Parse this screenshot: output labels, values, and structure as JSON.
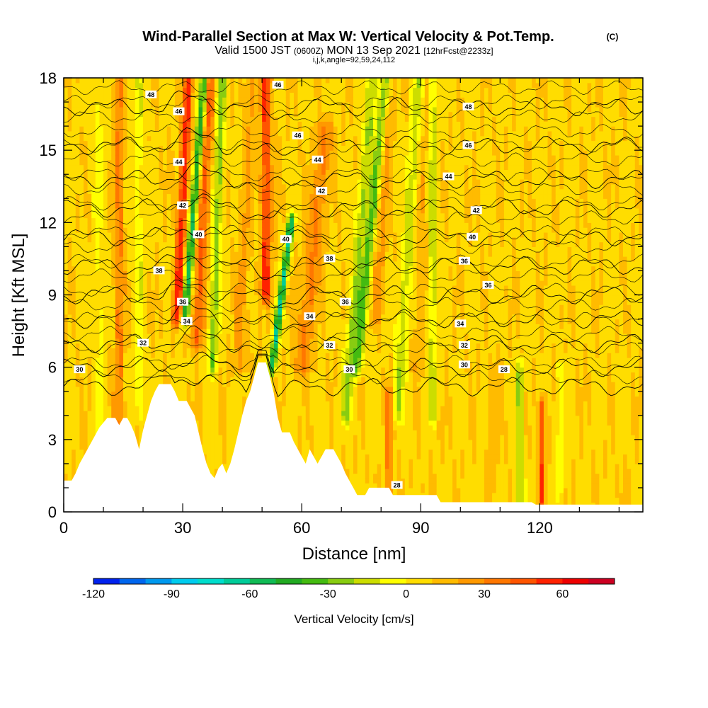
{
  "header": {
    "title_main": "Wind-Parallel Section at Max W: Vertical Velocity & Pot.Temp.",
    "copyright": "(C)",
    "valid_prefix": "Valid 1500 JST",
    "valid_utc": "(0600Z)",
    "valid_date": "MON 13 Sep 2021",
    "forecast": "[12hrFcst@2233z]",
    "indices": "i,j,k,angle=92,59,24,112"
  },
  "chart_data": {
    "type": "heatmap",
    "xlabel": "Distance [nm]",
    "ylabel": "Height [Kft MSL]",
    "xlim": [
      0,
      146
    ],
    "ylim": [
      0,
      18
    ],
    "x_ticks": [
      0,
      30,
      60,
      90,
      120
    ],
    "y_ticks": [
      0,
      3,
      6,
      9,
      12,
      15,
      18
    ],
    "terrain": [
      [
        0,
        1.3
      ],
      [
        2,
        1.3
      ],
      [
        3,
        1.6
      ],
      [
        4,
        2.0
      ],
      [
        5,
        2.3
      ],
      [
        6,
        2.6
      ],
      [
        7,
        2.9
      ],
      [
        8,
        3.2
      ],
      [
        9,
        3.5
      ],
      [
        10,
        3.7
      ],
      [
        11,
        3.9
      ],
      [
        13,
        3.9
      ],
      [
        14,
        3.6
      ],
      [
        15,
        3.9
      ],
      [
        16,
        3.9
      ],
      [
        17,
        3.6
      ],
      [
        18,
        3.2
      ],
      [
        19,
        2.6
      ],
      [
        20,
        3.4
      ],
      [
        21,
        4.0
      ],
      [
        22,
        4.6
      ],
      [
        23,
        5.0
      ],
      [
        24,
        5.3
      ],
      [
        27,
        5.3
      ],
      [
        28,
        5.0
      ],
      [
        29,
        4.6
      ],
      [
        31,
        4.6
      ],
      [
        32,
        4.3
      ],
      [
        33,
        4.0
      ],
      [
        34,
        3.3
      ],
      [
        35,
        2.6
      ],
      [
        36,
        2.0
      ],
      [
        37,
        1.6
      ],
      [
        38,
        1.4
      ],
      [
        39,
        1.8
      ],
      [
        40,
        2.0
      ],
      [
        41,
        1.6
      ],
      [
        42,
        2.0
      ],
      [
        43,
        2.6
      ],
      [
        44,
        3.3
      ],
      [
        45,
        4.0
      ],
      [
        46,
        4.6
      ],
      [
        47,
        5.0
      ],
      [
        48,
        5.6
      ],
      [
        49,
        6.2
      ],
      [
        51,
        6.2
      ],
      [
        52,
        5.6
      ],
      [
        53,
        4.9
      ],
      [
        54,
        3.9
      ],
      [
        55,
        3.3
      ],
      [
        57,
        3.3
      ],
      [
        58,
        2.9
      ],
      [
        59,
        2.6
      ],
      [
        60,
        2.3
      ],
      [
        61,
        2.0
      ],
      [
        62,
        2.6
      ],
      [
        63,
        2.3
      ],
      [
        64,
        2.0
      ],
      [
        65,
        2.3
      ],
      [
        66,
        2.6
      ],
      [
        68,
        2.6
      ],
      [
        69,
        2.3
      ],
      [
        70,
        2.0
      ],
      [
        71,
        1.6
      ],
      [
        72,
        1.3
      ],
      [
        73,
        1.0
      ],
      [
        74,
        0.7
      ],
      [
        76,
        0.7
      ],
      [
        77,
        1.0
      ],
      [
        82,
        1.0
      ],
      [
        83,
        0.7
      ],
      [
        94,
        0.7
      ],
      [
        95,
        0.4
      ],
      [
        118,
        0.4
      ],
      [
        119,
        0.3
      ],
      [
        146,
        0.3
      ]
    ],
    "theta_contours": [
      {
        "value": 28,
        "base": 5.2
      },
      {
        "value": 30,
        "base": 6.0
      },
      {
        "value": 32,
        "base": 7.0
      },
      {
        "value": 34,
        "base": 8.0
      },
      {
        "value": 36,
        "base": 9.0
      },
      {
        "value": 38,
        "base": 10.2
      },
      {
        "value": 40,
        "base": 11.4
      },
      {
        "value": 42,
        "base": 12.6
      },
      {
        "value": 44,
        "base": 13.8
      },
      {
        "value": 46,
        "base": 15.2
      },
      {
        "value": 48,
        "base": 16.8
      }
    ],
    "contour_labels": [
      {
        "text": "48",
        "x": 22,
        "y": 17.3
      },
      {
        "text": "46",
        "x": 54,
        "y": 17.7
      },
      {
        "text": "46",
        "x": 29,
        "y": 16.6
      },
      {
        "text": "48",
        "x": 102,
        "y": 16.8
      },
      {
        "text": "46",
        "x": 59,
        "y": 15.6
      },
      {
        "text": "46",
        "x": 102,
        "y": 15.2
      },
      {
        "text": "44",
        "x": 29,
        "y": 14.5
      },
      {
        "text": "44",
        "x": 64,
        "y": 14.6
      },
      {
        "text": "44",
        "x": 97,
        "y": 13.9
      },
      {
        "text": "42",
        "x": 65,
        "y": 13.3
      },
      {
        "text": "42",
        "x": 30,
        "y": 12.7
      },
      {
        "text": "42",
        "x": 104,
        "y": 12.5
      },
      {
        "text": "40",
        "x": 34,
        "y": 11.5
      },
      {
        "text": "40",
        "x": 56,
        "y": 11.3
      },
      {
        "text": "40",
        "x": 103,
        "y": 11.4
      },
      {
        "text": "38",
        "x": 24,
        "y": 10.0
      },
      {
        "text": "38",
        "x": 67,
        "y": 10.5
      },
      {
        "text": "36",
        "x": 101,
        "y": 10.4
      },
      {
        "text": "36",
        "x": 107,
        "y": 9.4
      },
      {
        "text": "36",
        "x": 30,
        "y": 8.7
      },
      {
        "text": "36",
        "x": 71,
        "y": 8.7
      },
      {
        "text": "34",
        "x": 31,
        "y": 7.9
      },
      {
        "text": "34",
        "x": 62,
        "y": 8.1
      },
      {
        "text": "34",
        "x": 100,
        "y": 7.8
      },
      {
        "text": "32",
        "x": 20,
        "y": 7.0
      },
      {
        "text": "32",
        "x": 67,
        "y": 6.9
      },
      {
        "text": "32",
        "x": 101,
        "y": 6.9
      },
      {
        "text": "30",
        "x": 4,
        "y": 5.9
      },
      {
        "text": "30",
        "x": 72,
        "y": 5.9
      },
      {
        "text": "30",
        "x": 101,
        "y": 6.1
      },
      {
        "text": "28",
        "x": 111,
        "y": 5.9
      },
      {
        "text": "28",
        "x": 84,
        "y": 1.1
      }
    ],
    "velocity_features": [
      {
        "x": 28.5,
        "y_min": 8,
        "y_max": 18,
        "w": 50,
        "hw": 1.2,
        "tilt": 0.3
      },
      {
        "x": 30.5,
        "y_min": 8,
        "y_max": 18,
        "w": -65,
        "hw": 1.0,
        "tilt": 0.5
      },
      {
        "x": 33.5,
        "y_min": 7,
        "y_max": 18,
        "w": 35,
        "hw": 1.5,
        "tilt": 0.3
      },
      {
        "x": 37.5,
        "y_min": 6,
        "y_max": 18,
        "w": -35,
        "hw": 1.2,
        "tilt": 0.2
      },
      {
        "x": 14,
        "y_min": 3,
        "y_max": 18,
        "w": 25,
        "hw": 1.2,
        "tilt": 0.0
      },
      {
        "x": 9,
        "y_min": 3,
        "y_max": 18,
        "w": -10,
        "hw": 1.5,
        "tilt": 0.0
      },
      {
        "x": 19,
        "y_min": 4,
        "y_max": 18,
        "w": -15,
        "hw": 1.2,
        "tilt": 0.0
      },
      {
        "x": 51,
        "y_min": 9,
        "y_max": 18,
        "w": 45,
        "hw": 1.3,
        "tilt": 0.0
      },
      {
        "x": 52.5,
        "y_min": 6,
        "y_max": 12,
        "w": -70,
        "hw": 0.9,
        "tilt": 0.8
      },
      {
        "x": 44,
        "y_min": 6,
        "y_max": 18,
        "w": 15,
        "hw": 1.5,
        "tilt": 0.3
      },
      {
        "x": 60,
        "y_min": 6,
        "y_max": 16,
        "w": 25,
        "hw": 2.0,
        "tilt": 0.6
      },
      {
        "x": 71,
        "y_min": 4,
        "y_max": 18,
        "w": -30,
        "hw": 1.5,
        "tilt": 0.5
      },
      {
        "x": 74,
        "y_min": 6,
        "y_max": 18,
        "w": -40,
        "hw": 1.2,
        "tilt": 0.6
      },
      {
        "x": 79,
        "y_min": 8,
        "y_max": 18,
        "w": 15,
        "hw": 1.5,
        "tilt": 0.3
      },
      {
        "x": 84,
        "y_min": 4,
        "y_max": 18,
        "w": -25,
        "hw": 1.5,
        "tilt": 0.4
      },
      {
        "x": 89,
        "y_min": 6,
        "y_max": 18,
        "w": 10,
        "hw": 1.5,
        "tilt": 0.2
      },
      {
        "x": 93,
        "y_min": 4,
        "y_max": 18,
        "w": -25,
        "hw": 1.0,
        "tilt": 0.0
      },
      {
        "x": 82,
        "y_min": 1,
        "y_max": 5,
        "w": 35,
        "hw": 0.7,
        "tilt": 0.0
      },
      {
        "x": 120.5,
        "y_min": 0.5,
        "y_max": 4.5,
        "w": 40,
        "hw": 0.7,
        "tilt": 0.0
      },
      {
        "x": 115,
        "y_min": 0.5,
        "y_max": 6,
        "w": -30,
        "hw": 1.0,
        "tilt": 0.0
      },
      {
        "x": 108,
        "y_min": 1,
        "y_max": 6,
        "w": 10,
        "hw": 1.0,
        "tilt": 0.0
      },
      {
        "x": 125,
        "y_min": 1,
        "y_max": 6,
        "w": -15,
        "hw": 1.0,
        "tilt": 0.0
      }
    ],
    "colorbar": {
      "title": "Vertical Velocity [cm/s]",
      "min": -120,
      "max": 80,
      "step": 10,
      "tick_values": [
        -120,
        -90,
        -60,
        -30,
        0,
        30,
        60
      ],
      "tick_labels": [
        "-120",
        "-90",
        "-60",
        "-30",
        "0",
        "30",
        "60"
      ],
      "colors": [
        "#0022ee",
        "#0066ee",
        "#0099ee",
        "#00ccee",
        "#00ddcc",
        "#00cc99",
        "#11bb55",
        "#22aa22",
        "#44bb11",
        "#88cc11",
        "#ccdd00",
        "#ffff00",
        "#ffdd00",
        "#ffbb00",
        "#ff9900",
        "#ff7700",
        "#ff5500",
        "#ff2200",
        "#ee0000",
        "#cc0022",
        "#aa0055",
        "#880077"
      ]
    }
  }
}
